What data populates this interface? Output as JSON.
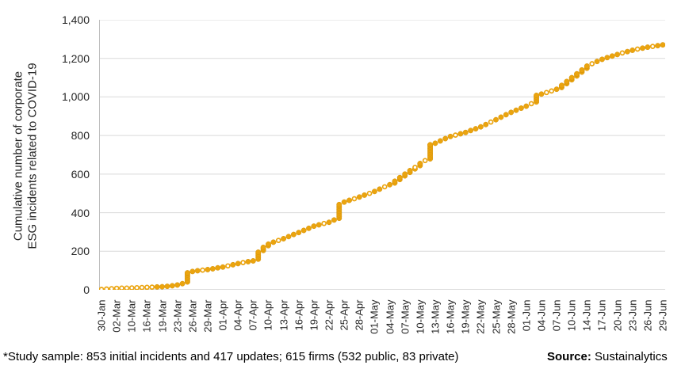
{
  "chart_data": {
    "type": "scatter",
    "title": "",
    "ylabel": "Cumulative number of corporate ESG incidents related to COVID-19",
    "ylabel_lines": [
      "Cumulative number of corporate",
      "ESG incidents related to COVID-19"
    ],
    "ylim": [
      0,
      1400
    ],
    "y_tick_step": 200,
    "y_tick_labels": [
      "0",
      "200",
      "400",
      "600",
      "800",
      "1,000",
      "1,200",
      "1,400"
    ],
    "grid": true,
    "legend_position": "none",
    "label_every": 3,
    "x_tick_labels": [
      "30-Jan",
      "02-Mar",
      "10-Mar",
      "16-Mar",
      "19-Mar",
      "23-Mar",
      "26-Mar",
      "29-Mar",
      "01-Apr",
      "04-Apr",
      "07-Apr",
      "10-Apr",
      "13-Apr",
      "16-Apr",
      "19-Apr",
      "22-Apr",
      "25-Apr",
      "28-Apr",
      "01-May",
      "04-May",
      "07-May",
      "10-May",
      "13-May",
      "16-May",
      "19-May",
      "22-May",
      "25-May",
      "28-May",
      "01-Jun",
      "04-Jun",
      "07-Jun",
      "10-Jun",
      "14-Jun",
      "17-Jun",
      "20-Jun",
      "23-Jun",
      "26-Jun",
      "29-Jun"
    ],
    "series_name": "Cumulative ESG incidents related to COVID-19",
    "values": [
      2,
      4,
      6,
      8,
      9,
      9,
      10,
      11,
      12,
      13,
      14,
      15,
      16,
      18,
      21,
      25,
      32,
      88,
      95,
      99,
      102,
      105,
      109,
      114,
      118,
      124,
      130,
      136,
      141,
      146,
      150,
      195,
      220,
      237,
      247,
      256,
      265,
      276,
      287,
      297,
      308,
      319,
      330,
      337,
      344,
      350,
      362,
      442,
      455,
      464,
      472,
      481,
      491,
      500,
      510,
      522,
      534,
      545,
      563,
      582,
      600,
      618,
      635,
      655,
      670,
      752,
      760,
      772,
      784,
      795,
      802,
      809,
      816,
      826,
      835,
      845,
      857,
      870,
      882,
      895,
      908,
      920,
      931,
      942,
      952,
      965,
      1008,
      1015,
      1023,
      1031,
      1040,
      1060,
      1080,
      1100,
      1120,
      1140,
      1160,
      1172,
      1184,
      1195,
      1204,
      1212,
      1220,
      1228,
      1235,
      1242,
      1248,
      1253,
      1258,
      1262,
      1266,
      1270
    ],
    "hollow_indices": [
      0,
      1,
      2,
      3,
      4,
      5,
      6,
      7,
      8,
      9,
      10,
      20,
      25,
      28,
      35,
      44,
      50,
      53,
      56,
      62,
      64,
      70,
      77,
      85,
      88,
      89,
      97,
      103,
      106,
      109
    ],
    "dot_color": "#EBA40F",
    "dot_edge_color": "#D69408",
    "grid_color": "#D9D9D9",
    "axis_color": "#BFBFBF"
  },
  "footnote": {
    "study_sample": "*Study sample: 853 initial incidents and 417 updates; 615 firms (532 public, 83 private)",
    "source_label": "Source:",
    "source_value": "Sustainalytics"
  }
}
